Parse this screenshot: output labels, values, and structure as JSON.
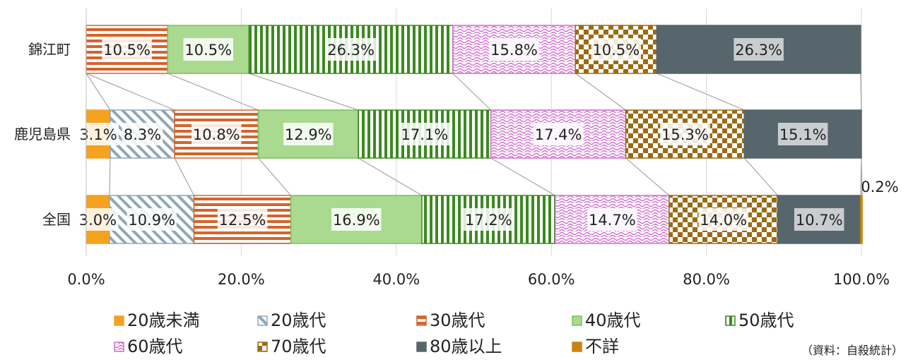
{
  "chart_data": {
    "type": "bar",
    "orientation": "horizontal",
    "stacked": "percent",
    "categories": [
      "錦江町",
      "鹿児島県",
      "全国"
    ],
    "series": [
      {
        "name": "20歳未満",
        "values": [
          0.0,
          3.1,
          3.0
        ],
        "color": "#f5a21e",
        "pattern": "solid"
      },
      {
        "name": "20歳代",
        "values": [
          0.0,
          8.3,
          10.9
        ],
        "color": "#8fa7b7",
        "pattern": "diagonal"
      },
      {
        "name": "30歳代",
        "values": [
          10.5,
          10.8,
          12.5
        ],
        "color": "#d5632a",
        "pattern": "hstripe"
      },
      {
        "name": "40歳代",
        "values": [
          10.5,
          12.9,
          16.9
        ],
        "color": "#a9da8f",
        "pattern": "solid-light"
      },
      {
        "name": "50歳代",
        "values": [
          26.3,
          17.1,
          17.2
        ],
        "color": "#3b8a1f",
        "pattern": "vstripe"
      },
      {
        "name": "60歳代",
        "values": [
          15.8,
          17.4,
          14.7
        ],
        "color": "#d36fd0",
        "pattern": "wave"
      },
      {
        "name": "70歳代",
        "values": [
          10.5,
          15.3,
          14.0
        ],
        "color": "#9b6a12",
        "pattern": "checker"
      },
      {
        "name": "80歳以上",
        "values": [
          26.3,
          15.1,
          10.7
        ],
        "color": "#56666c",
        "pattern": "solid"
      },
      {
        "name": "不詳",
        "values": [
          0.0,
          0.0,
          0.2
        ],
        "color": "#c8840f",
        "pattern": "solid"
      }
    ],
    "data_labels": [
      [
        "",
        "",
        "10.5%",
        "10.5%",
        "26.3%",
        "15.8%",
        "10.5%",
        "26.3%",
        ""
      ],
      [
        "3.1%",
        "8.3%",
        "10.8%",
        "12.9%",
        "17.1%",
        "17.4%",
        "15.3%",
        "15.1%",
        ""
      ],
      [
        "3.0%",
        "10.9%",
        "12.5%",
        "16.9%",
        "17.2%",
        "14.7%",
        "14.0%",
        "10.7%",
        "0.2%"
      ]
    ],
    "x_ticks": [
      "0.0%",
      "20.0%",
      "40.0%",
      "60.0%",
      "80.0%",
      "100.0%"
    ],
    "xlim": [
      0,
      100
    ],
    "grid": true,
    "legend_position": "bottom"
  },
  "source_note": "（資料：自殺統計）"
}
